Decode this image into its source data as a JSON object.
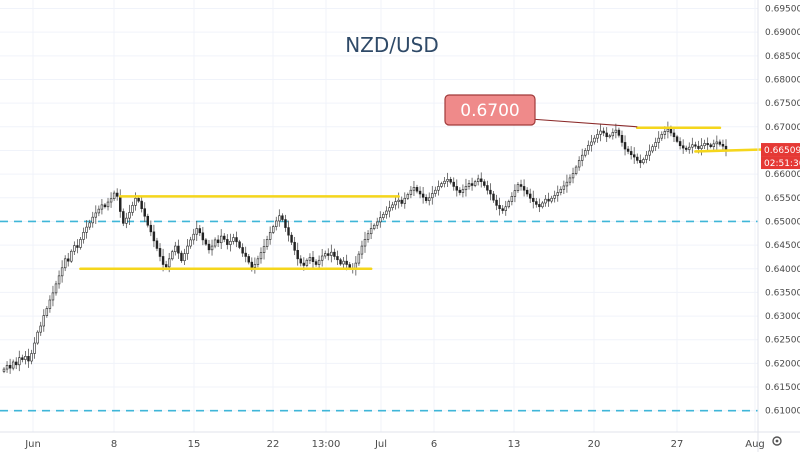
{
  "chart_data": {
    "type": "candlestick",
    "title": "NZD/USD",
    "price_range": [
      0.6055,
      0.6968
    ],
    "y_ticks": [
      "0.69500",
      "0.69000",
      "0.68500",
      "0.68000",
      "0.67500",
      "0.67000",
      "0.66500",
      "0.66000",
      "0.65500",
      "0.65000",
      "0.64500",
      "0.64000",
      "0.63500",
      "0.63000",
      "0.62500",
      "0.62000",
      "0.61500",
      "0.61000"
    ],
    "x_ticks": [
      "Jun",
      "8",
      "15",
      "22",
      "13:00",
      "Jul",
      "6",
      "13",
      "20",
      "27",
      "Aug"
    ],
    "current_price": "0.66509",
    "countdown": "02:51:36",
    "callout_label": "0.6700",
    "horizontal_levels": [
      {
        "price": 0.65,
        "style": "dashed",
        "color": "#3fb6d8"
      },
      {
        "price": 0.61,
        "style": "dashed",
        "color": "#3fb6d8"
      }
    ],
    "support_resistance": [
      {
        "from_index": 38,
        "to_index": 129,
        "price": 0.6553
      },
      {
        "from_index": 25,
        "to_index": 120,
        "price": 0.64
      },
      {
        "from_index": 207,
        "to_index": 234,
        "price": 0.6698
      },
      {
        "from_index": 226,
        "to_index": 249,
        "price": 0.6648
      }
    ],
    "close_series": [
      0.6188,
      0.6196,
      0.619,
      0.6203,
      0.6197,
      0.6212,
      0.6208,
      0.6215,
      0.6205,
      0.6221,
      0.6243,
      0.6266,
      0.6279,
      0.6301,
      0.6316,
      0.6334,
      0.6349,
      0.6368,
      0.6385,
      0.6402,
      0.6421,
      0.6416,
      0.6437,
      0.6449,
      0.6445,
      0.6462,
      0.6477,
      0.6488,
      0.6497,
      0.6509,
      0.6518,
      0.6526,
      0.6535,
      0.6531,
      0.6541,
      0.6548,
      0.656,
      0.6553,
      0.6521,
      0.6496,
      0.6507,
      0.6519,
      0.6534,
      0.6549,
      0.6543,
      0.6527,
      0.6511,
      0.6492,
      0.6478,
      0.6459,
      0.6443,
      0.6426,
      0.6409,
      0.6404,
      0.6421,
      0.6436,
      0.6448,
      0.6433,
      0.6417,
      0.6432,
      0.6448,
      0.6461,
      0.6473,
      0.6485,
      0.6476,
      0.6461,
      0.6452,
      0.644,
      0.6448,
      0.6461,
      0.6455,
      0.6469,
      0.6462,
      0.6451,
      0.6458,
      0.6466,
      0.6457,
      0.6445,
      0.6433,
      0.6426,
      0.6414,
      0.6403,
      0.6409,
      0.6421,
      0.6434,
      0.6447,
      0.6462,
      0.6477,
      0.6489,
      0.6501,
      0.6512,
      0.6504,
      0.6487,
      0.6471,
      0.6456,
      0.6439,
      0.6421,
      0.6412,
      0.6407,
      0.6418,
      0.6424,
      0.6415,
      0.6409,
      0.6418,
      0.6427,
      0.6432,
      0.6428,
      0.6435,
      0.6426,
      0.6419,
      0.641,
      0.6416,
      0.6409,
      0.6402,
      0.6399,
      0.6412,
      0.6431,
      0.6448,
      0.6462,
      0.6474,
      0.6485,
      0.6492,
      0.6499,
      0.6508,
      0.6515,
      0.6522,
      0.6529,
      0.6535,
      0.6542,
      0.6545,
      0.6538,
      0.6549,
      0.6557,
      0.6566,
      0.6572,
      0.6564,
      0.6558,
      0.6551,
      0.6544,
      0.655,
      0.6559,
      0.6566,
      0.6574,
      0.658,
      0.6585,
      0.6589,
      0.6583,
      0.6574,
      0.6566,
      0.6561,
      0.6567,
      0.6574,
      0.658,
      0.6576,
      0.6584,
      0.659,
      0.6584,
      0.6576,
      0.6566,
      0.6558,
      0.6545,
      0.6534,
      0.6527,
      0.6523,
      0.6531,
      0.6542,
      0.6553,
      0.6565,
      0.6578,
      0.6574,
      0.6566,
      0.6558,
      0.6549,
      0.6542,
      0.6536,
      0.6531,
      0.6539,
      0.6547,
      0.6543,
      0.6549,
      0.6555,
      0.6561,
      0.6568,
      0.6575,
      0.6583,
      0.6592,
      0.6601,
      0.6615,
      0.6629,
      0.664,
      0.665,
      0.6661,
      0.6668,
      0.6676,
      0.6684,
      0.6691,
      0.6687,
      0.6679,
      0.6681,
      0.6688,
      0.6693,
      0.6682,
      0.6667,
      0.6653,
      0.6648,
      0.6641,
      0.6636,
      0.6629,
      0.6624,
      0.6631,
      0.664,
      0.6649,
      0.6658,
      0.6667,
      0.6676,
      0.6684,
      0.669,
      0.6695,
      0.6687,
      0.6679,
      0.6669,
      0.666,
      0.6655,
      0.6652,
      0.6657,
      0.6662,
      0.6659,
      0.6654,
      0.666,
      0.6665,
      0.6662,
      0.6658,
      0.6664,
      0.6668,
      0.6663,
      0.6659,
      0.6651
    ]
  },
  "toolbar": {
    "settings_icon": "gear-icon"
  }
}
